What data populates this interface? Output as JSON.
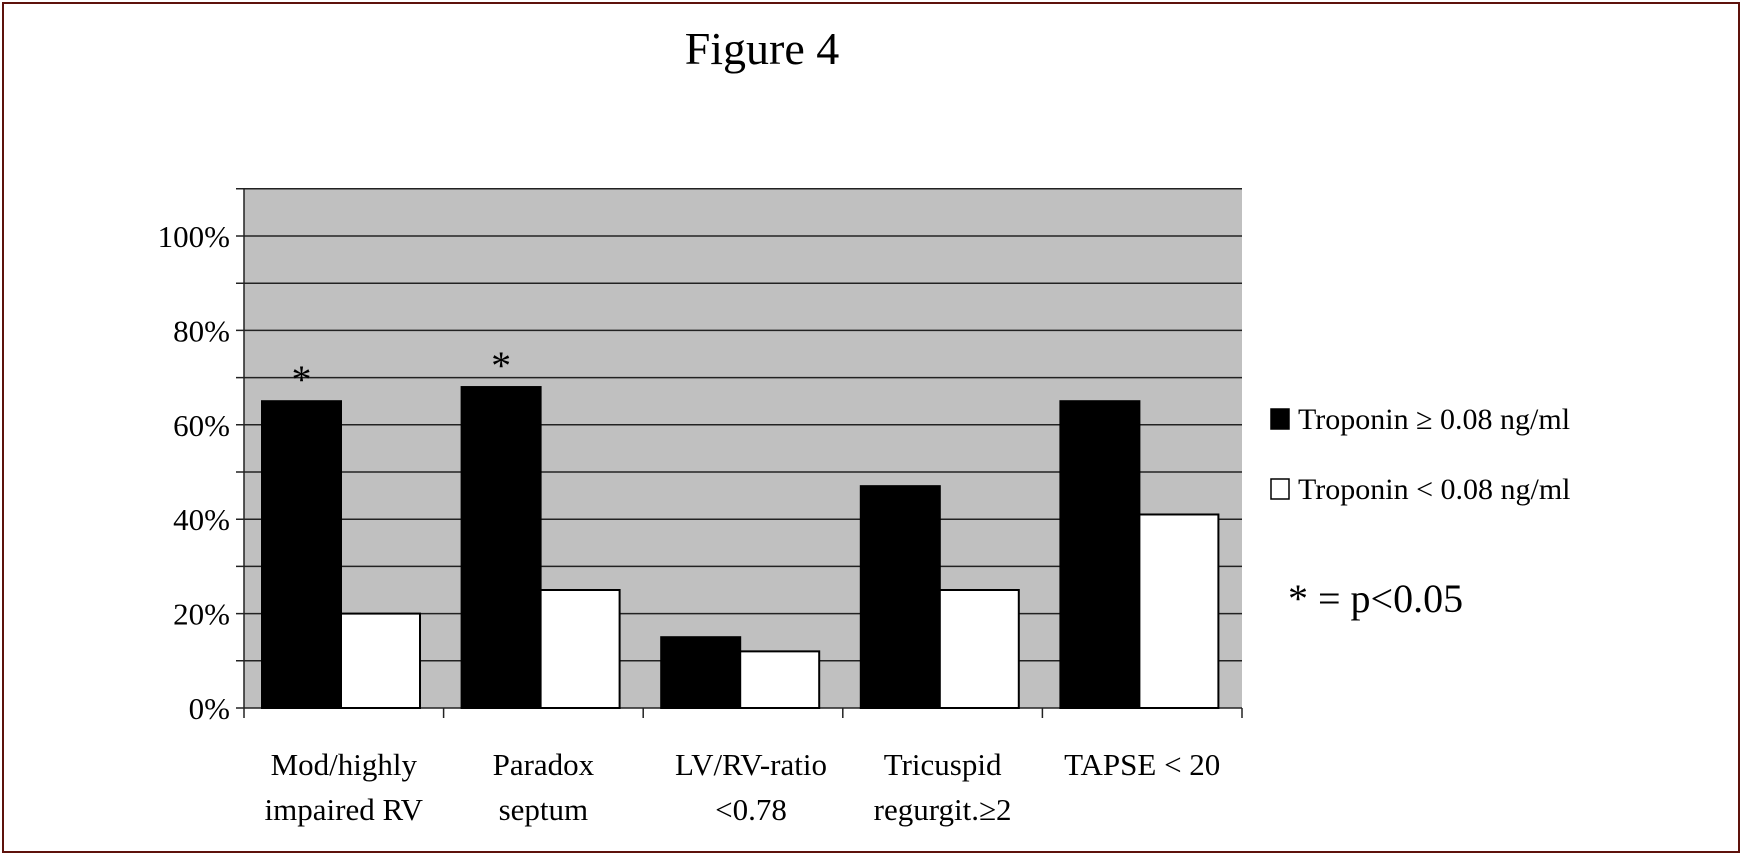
{
  "chart_data": {
    "type": "bar",
    "title": "Figure 4",
    "xlabel": "",
    "ylabel": "",
    "categories": [
      [
        "Mod/highly",
        "impaired RV"
      ],
      [
        "Paradox",
        "septum"
      ],
      [
        "LV/RV-ratio",
        "<0.78"
      ],
      [
        "Tricuspid",
        "regurgit.≥2"
      ],
      [
        "TAPSE < 20"
      ]
    ],
    "series": [
      {
        "name": "Troponin ≥ 0.08 ng/ml",
        "color": "#000000",
        "values": [
          65,
          68,
          15,
          47,
          65
        ]
      },
      {
        "name": "Troponin < 0.08 ng/ml",
        "color": "#ffffff",
        "values": [
          20,
          25,
          12,
          25,
          41
        ]
      }
    ],
    "significance_markers": [
      "*",
      "*",
      "",
      "",
      ""
    ],
    "annotation": "* = p<0.05",
    "yticks": [
      "0%",
      "20%",
      "40%",
      "60%",
      "80%",
      "100%"
    ],
    "ylim": [
      0,
      110
    ],
    "y_unit": "%",
    "grid": true,
    "gridline_step": 10,
    "plot_background": "#c0c0c0",
    "legend_position": "right",
    "frame_color": "#5e120c"
  }
}
